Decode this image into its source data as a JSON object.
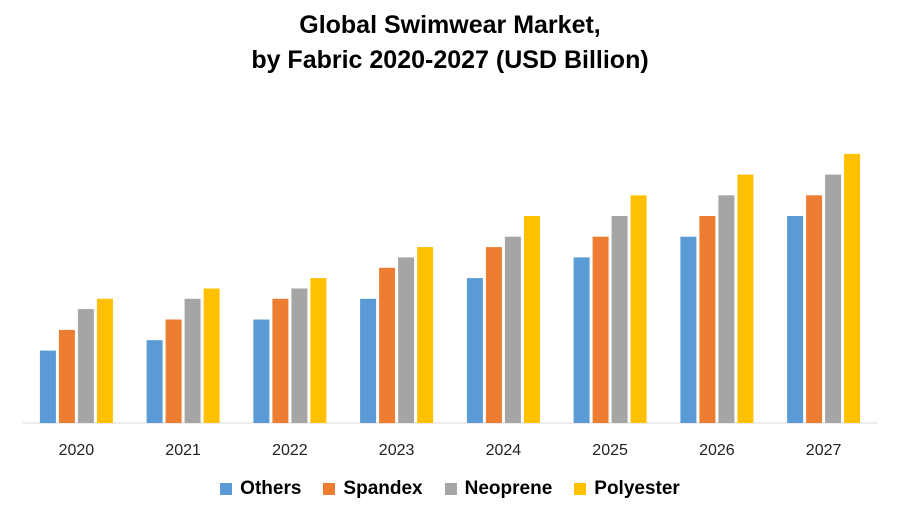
{
  "chart_data": {
    "type": "bar",
    "title_lines": [
      "Global Swimwear Market,",
      "by Fabric 2020-2027 (USD Billion)"
    ],
    "categories": [
      "2020",
      "2021",
      "2022",
      "2023",
      "2024",
      "2025",
      "2026",
      "2027"
    ],
    "series": [
      {
        "name": "Others",
        "color": "#5B9BD5",
        "values": [
          7,
          8,
          10,
          12,
          14,
          16,
          18,
          20
        ]
      },
      {
        "name": "Spandex",
        "color": "#ED7D31",
        "values": [
          9,
          10,
          12,
          15,
          17,
          18,
          20,
          22
        ]
      },
      {
        "name": "Neoprene",
        "color": "#A5A5A5",
        "values": [
          11,
          12,
          13,
          16,
          18,
          20,
          22,
          24
        ]
      },
      {
        "name": "Polyester",
        "color": "#FFC000",
        "values": [
          12,
          13,
          14,
          17,
          20,
          22,
          24,
          26
        ]
      }
    ],
    "ylim": [
      0,
      30
    ],
    "grid": false,
    "legend_position": "bottom"
  }
}
